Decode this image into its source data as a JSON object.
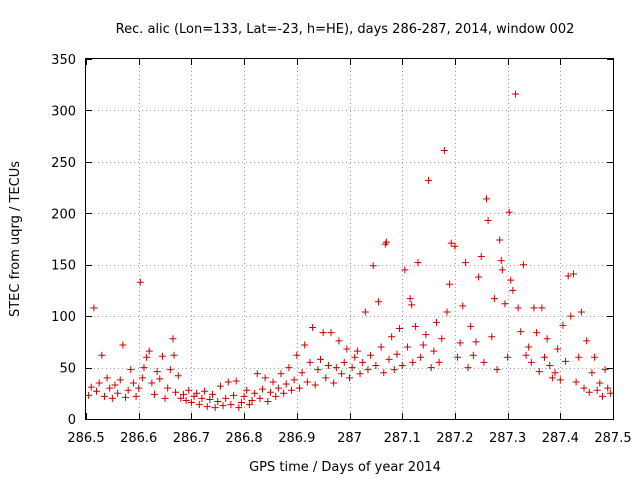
{
  "chart_data": {
    "type": "scatter",
    "title": "Rec. alic (Lon=133, Lat=-23, h=HE), days 286-287, 2014, window 002",
    "xlabel": "GPS time / Days of year 2014",
    "ylabel": "STEC from uqrg / TECUs",
    "xlim": [
      286.5,
      287.5
    ],
    "ylim": [
      0,
      350
    ],
    "xticks": [
      286.5,
      286.6,
      286.7,
      286.8,
      286.9,
      287.0,
      287.1,
      287.2,
      287.3,
      287.4,
      287.5
    ],
    "xtick_labels": [
      "286.5",
      "286.6",
      "286.7",
      "286.8",
      "286.9",
      "287",
      "287.1",
      "287.2",
      "287.3",
      "287.4",
      "287.5"
    ],
    "yticks": [
      0,
      50,
      100,
      150,
      200,
      250,
      300,
      350
    ],
    "ytick_labels": [
      "0",
      "50",
      "100",
      "150",
      "200",
      "250",
      "300",
      "350"
    ],
    "grid": true,
    "marker": "plus",
    "color": "#cc0000",
    "series": [
      {
        "points": [
          [
            286.505,
            23
          ],
          [
            286.51,
            31
          ],
          [
            286.515,
            108
          ],
          [
            286.52,
            27
          ],
          [
            286.525,
            35
          ],
          [
            286.53,
            62
          ],
          [
            286.535,
            22
          ],
          [
            286.54,
            40
          ],
          [
            286.545,
            30
          ],
          [
            286.55,
            20
          ],
          [
            286.555,
            33
          ],
          [
            286.56,
            25
          ],
          [
            286.565,
            38
          ],
          [
            286.57,
            72
          ],
          [
            286.575,
            21
          ],
          [
            286.58,
            28
          ],
          [
            286.585,
            48
          ],
          [
            286.59,
            35
          ],
          [
            286.595,
            22
          ],
          [
            286.6,
            30
          ],
          [
            286.603,
            133
          ],
          [
            286.607,
            40
          ],
          [
            286.61,
            50
          ],
          [
            286.615,
            60
          ],
          [
            286.62,
            66
          ],
          [
            286.625,
            35
          ],
          [
            286.63,
            24
          ],
          [
            286.635,
            46
          ],
          [
            286.64,
            39
          ],
          [
            286.645,
            61
          ],
          [
            286.65,
            20
          ],
          [
            286.655,
            30
          ],
          [
            286.66,
            48
          ],
          [
            286.665,
            78
          ],
          [
            286.667,
            62
          ],
          [
            286.67,
            26
          ],
          [
            286.675,
            42
          ],
          [
            286.68,
            20
          ],
          [
            286.685,
            24
          ],
          [
            286.69,
            18
          ],
          [
            286.695,
            28
          ],
          [
            286.7,
            16
          ],
          [
            286.705,
            22
          ],
          [
            286.71,
            25
          ],
          [
            286.715,
            14
          ],
          [
            286.72,
            20
          ],
          [
            286.725,
            27
          ],
          [
            286.73,
            12
          ],
          [
            286.735,
            19
          ],
          [
            286.74,
            24
          ],
          [
            286.745,
            11
          ],
          [
            286.75,
            17
          ],
          [
            286.755,
            32
          ],
          [
            286.76,
            13
          ],
          [
            286.765,
            20
          ],
          [
            286.77,
            36
          ],
          [
            286.775,
            14
          ],
          [
            286.78,
            23
          ],
          [
            286.785,
            37
          ],
          [
            286.79,
            11
          ],
          [
            286.795,
            16
          ],
          [
            286.8,
            22
          ],
          [
            286.805,
            28
          ],
          [
            286.81,
            14
          ],
          [
            286.815,
            18
          ],
          [
            286.82,
            25
          ],
          [
            286.825,
            44
          ],
          [
            286.83,
            20
          ],
          [
            286.835,
            29
          ],
          [
            286.84,
            40
          ],
          [
            286.845,
            17
          ],
          [
            286.85,
            26
          ],
          [
            286.855,
            36
          ],
          [
            286.86,
            22
          ],
          [
            286.865,
            30
          ],
          [
            286.87,
            44
          ],
          [
            286.875,
            25
          ],
          [
            286.88,
            34
          ],
          [
            286.885,
            50
          ],
          [
            286.89,
            28
          ],
          [
            286.895,
            38
          ],
          [
            286.9,
            62
          ],
          [
            286.905,
            30
          ],
          [
            286.91,
            45
          ],
          [
            286.915,
            72
          ],
          [
            286.92,
            36
          ],
          [
            286.925,
            55
          ],
          [
            286.93,
            89
          ],
          [
            286.935,
            33
          ],
          [
            286.94,
            48
          ],
          [
            286.945,
            58
          ],
          [
            286.95,
            84
          ],
          [
            286.955,
            40
          ],
          [
            286.96,
            52
          ],
          [
            286.965,
            84
          ],
          [
            286.97,
            35
          ],
          [
            286.975,
            50
          ],
          [
            286.98,
            76
          ],
          [
            286.985,
            44
          ],
          [
            286.99,
            55
          ],
          [
            286.995,
            68
          ],
          [
            287.0,
            40
          ],
          [
            287.005,
            50
          ],
          [
            287.01,
            60
          ],
          [
            287.015,
            66
          ],
          [
            287.02,
            44
          ],
          [
            287.025,
            55
          ],
          [
            287.03,
            104
          ],
          [
            287.035,
            48
          ],
          [
            287.04,
            62
          ],
          [
            287.045,
            149
          ],
          [
            287.05,
            52
          ],
          [
            287.055,
            114
          ],
          [
            287.06,
            70
          ],
          [
            287.065,
            45
          ],
          [
            287.068,
            170
          ],
          [
            287.07,
            172
          ],
          [
            287.075,
            58
          ],
          [
            287.08,
            80
          ],
          [
            287.085,
            48
          ],
          [
            287.09,
            63
          ],
          [
            287.095,
            88
          ],
          [
            287.1,
            52
          ],
          [
            287.105,
            145
          ],
          [
            287.11,
            70
          ],
          [
            287.115,
            117
          ],
          [
            287.118,
            111
          ],
          [
            287.12,
            55
          ],
          [
            287.125,
            90
          ],
          [
            287.13,
            152
          ],
          [
            287.135,
            60
          ],
          [
            287.14,
            72
          ],
          [
            287.145,
            82
          ],
          [
            287.15,
            232
          ],
          [
            287.155,
            50
          ],
          [
            287.16,
            66
          ],
          [
            287.165,
            94
          ],
          [
            287.17,
            55
          ],
          [
            287.175,
            78
          ],
          [
            287.18,
            261
          ],
          [
            287.185,
            104
          ],
          [
            287.19,
            131
          ],
          [
            287.193,
            171
          ],
          [
            287.2,
            168
          ],
          [
            287.205,
            60
          ],
          [
            287.21,
            74
          ],
          [
            287.215,
            110
          ],
          [
            287.22,
            152
          ],
          [
            287.225,
            50
          ],
          [
            287.23,
            90
          ],
          [
            287.235,
            62
          ],
          [
            287.24,
            75
          ],
          [
            287.245,
            138
          ],
          [
            287.25,
            158
          ],
          [
            287.255,
            55
          ],
          [
            287.26,
            214
          ],
          [
            287.263,
            193
          ],
          [
            287.27,
            80
          ],
          [
            287.275,
            117
          ],
          [
            287.28,
            48
          ],
          [
            287.285,
            174
          ],
          [
            287.288,
            154
          ],
          [
            287.29,
            145
          ],
          [
            287.295,
            112
          ],
          [
            287.3,
            60
          ],
          [
            287.303,
            201
          ],
          [
            287.306,
            135
          ],
          [
            287.31,
            125
          ],
          [
            287.315,
            316
          ],
          [
            287.32,
            108
          ],
          [
            287.325,
            85
          ],
          [
            287.33,
            150
          ],
          [
            287.335,
            62
          ],
          [
            287.34,
            70
          ],
          [
            287.345,
            55
          ],
          [
            287.35,
            108
          ],
          [
            287.355,
            84
          ],
          [
            287.36,
            46
          ],
          [
            287.365,
            108
          ],
          [
            287.37,
            60
          ],
          [
            287.375,
            78
          ],
          [
            287.38,
            52
          ],
          [
            287.385,
            40
          ],
          [
            287.39,
            45
          ],
          [
            287.395,
            68
          ],
          [
            287.4,
            38
          ],
          [
            287.405,
            91
          ],
          [
            287.41,
            56
          ],
          [
            287.415,
            139
          ],
          [
            287.42,
            100
          ],
          [
            287.425,
            141
          ],
          [
            287.43,
            36
          ],
          [
            287.435,
            60
          ],
          [
            287.44,
            104
          ],
          [
            287.445,
            30
          ],
          [
            287.45,
            76
          ],
          [
            287.455,
            26
          ],
          [
            287.46,
            45
          ],
          [
            287.465,
            60
          ],
          [
            287.47,
            28
          ],
          [
            287.475,
            35
          ],
          [
            287.48,
            22
          ],
          [
            287.485,
            48
          ],
          [
            287.49,
            30
          ],
          [
            287.495,
            25
          ]
        ]
      }
    ]
  }
}
